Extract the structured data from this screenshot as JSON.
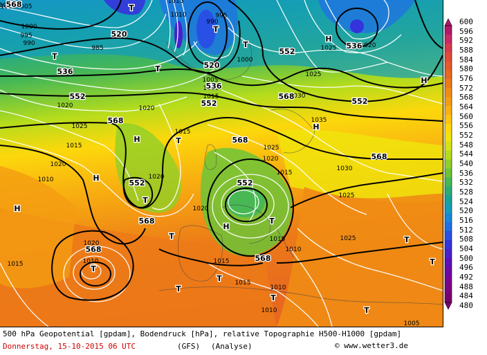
{
  "map": {
    "pressure_centers": [
      {
        "label": "T",
        "kind": "low"
      },
      {
        "label": "T",
        "kind": "low"
      },
      {
        "label": "T",
        "kind": "low"
      },
      {
        "label": "T",
        "kind": "low"
      },
      {
        "label": "T",
        "kind": "low"
      },
      {
        "label": "T",
        "kind": "low"
      },
      {
        "label": "T",
        "kind": "low"
      },
      {
        "label": "T",
        "kind": "low"
      },
      {
        "label": "T",
        "kind": "low"
      },
      {
        "label": "T",
        "kind": "low"
      },
      {
        "label": "T",
        "kind": "low"
      },
      {
        "label": "T",
        "kind": "low"
      },
      {
        "label": "T",
        "kind": "low"
      },
      {
        "label": "T",
        "kind": "low"
      },
      {
        "label": "T",
        "kind": "low"
      },
      {
        "label": "T",
        "kind": "low"
      },
      {
        "label": "H",
        "kind": "high"
      },
      {
        "label": "H",
        "kind": "high"
      },
      {
        "label": "H",
        "kind": "high"
      },
      {
        "label": "H",
        "kind": "high"
      },
      {
        "label": "H",
        "kind": "high"
      },
      {
        "label": "H",
        "kind": "high"
      },
      {
        "label": "H",
        "kind": "high"
      }
    ],
    "geopotential_labels": [
      "520",
      "536",
      "520",
      "536",
      "536",
      "552",
      "552",
      "552",
      "552",
      "568",
      "568",
      "568",
      "552",
      "552",
      "568",
      "568",
      "568",
      "568",
      "536",
      "568"
    ],
    "pressure_labels": [
      "1005",
      "1000",
      "995",
      "990",
      "985",
      "1010",
      "1015",
      "1010",
      "995",
      "990",
      "1000",
      "1005",
      "1010",
      "1015",
      "1020",
      "1025",
      "1020",
      "1025",
      "1030",
      "1035",
      "1025",
      "1020",
      "1015",
      "1020",
      "1025",
      "1030",
      "1025",
      "1020",
      "1015",
      "1010",
      "1020",
      "1015",
      "1010",
      "1015",
      "1010",
      "1005",
      "1010",
      "1015",
      "1020",
      "1025",
      "1015",
      "1020",
      "1010",
      "1015",
      "1010",
      "1020"
    ]
  },
  "legend": {
    "values": [
      "600",
      "596",
      "592",
      "588",
      "584",
      "580",
      "576",
      "572",
      "568",
      "564",
      "560",
      "556",
      "552",
      "548",
      "544",
      "540",
      "536",
      "532",
      "528",
      "524",
      "520",
      "516",
      "512",
      "508",
      "504",
      "500",
      "496",
      "492",
      "488",
      "484",
      "480"
    ],
    "colors": [
      "#b0186c",
      "#c8286a",
      "#d83a4e",
      "#e04a3a",
      "#e45a2c",
      "#e86820",
      "#ec7a18",
      "#f08c14",
      "#f49c12",
      "#f8b010",
      "#fcc40c",
      "#fcd80c",
      "#f0e40c",
      "#d4e414",
      "#b4dc1c",
      "#90d028",
      "#6cc438",
      "#48b854",
      "#2cac74",
      "#18a498",
      "#149cbc",
      "#1888d8",
      "#2070e4",
      "#2850e4",
      "#3434dc",
      "#4820cc",
      "#5c10b8",
      "#6c08a4",
      "#780490",
      "#7c0280",
      "#7a0070"
    ]
  },
  "footer": {
    "line1": "500 hPa Geopotential [gpdam], Bodendruck [hPa], relative Topographie H500-H1000 [gpdam]",
    "line2": "Donnerstag, 15-10-2015  06 UTC",
    "model": "(GFS)",
    "type": "(Analyse)",
    "credit": "© www.wetter3.de"
  }
}
